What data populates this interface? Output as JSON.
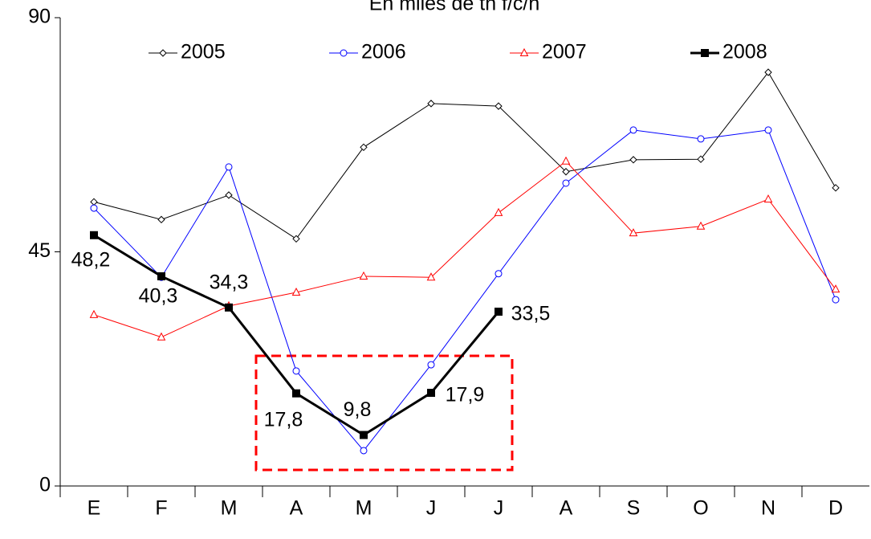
{
  "chart_data": {
    "type": "line",
    "title": "En miles de tn f/c/h",
    "categories": [
      "E",
      "F",
      "M",
      "A",
      "M",
      "J",
      "J",
      "A",
      "S",
      "O",
      "N",
      "D"
    ],
    "ylim": [
      0,
      90
    ],
    "yticks": [
      0,
      45,
      90
    ],
    "series": [
      {
        "name": "2005",
        "color": "#000000",
        "marker": "diamond",
        "values": [
          54.6,
          51.2,
          55.9,
          47.5,
          65.1,
          73.5,
          73.0,
          60.4,
          62.7,
          62.8,
          79.5,
          57.3
        ]
      },
      {
        "name": "2006",
        "color": "#0000ff",
        "marker": "circle",
        "values": [
          53.4,
          40.1,
          61.3,
          22.1,
          6.8,
          23.3,
          40.8,
          58.2,
          68.4,
          66.7,
          68.4,
          35.8
        ]
      },
      {
        "name": "2007",
        "color": "#ff0000",
        "marker": "triangle",
        "values": [
          32.9,
          28.6,
          34.6,
          37.2,
          40.3,
          40.1,
          52.5,
          62.4,
          48.6,
          49.9,
          55.1,
          37.8
        ]
      },
      {
        "name": "2008",
        "color": "#000000",
        "marker": "square",
        "values": [
          48.2,
          40.3,
          34.3,
          17.8,
          9.8,
          17.9,
          33.5,
          null,
          null,
          null,
          null,
          null
        ],
        "value_labels": [
          "48,2",
          "40,3",
          "34,3",
          "17,8",
          "9,8",
          "17,9",
          "33,5",
          null,
          null,
          null,
          null,
          null
        ]
      }
    ]
  }
}
